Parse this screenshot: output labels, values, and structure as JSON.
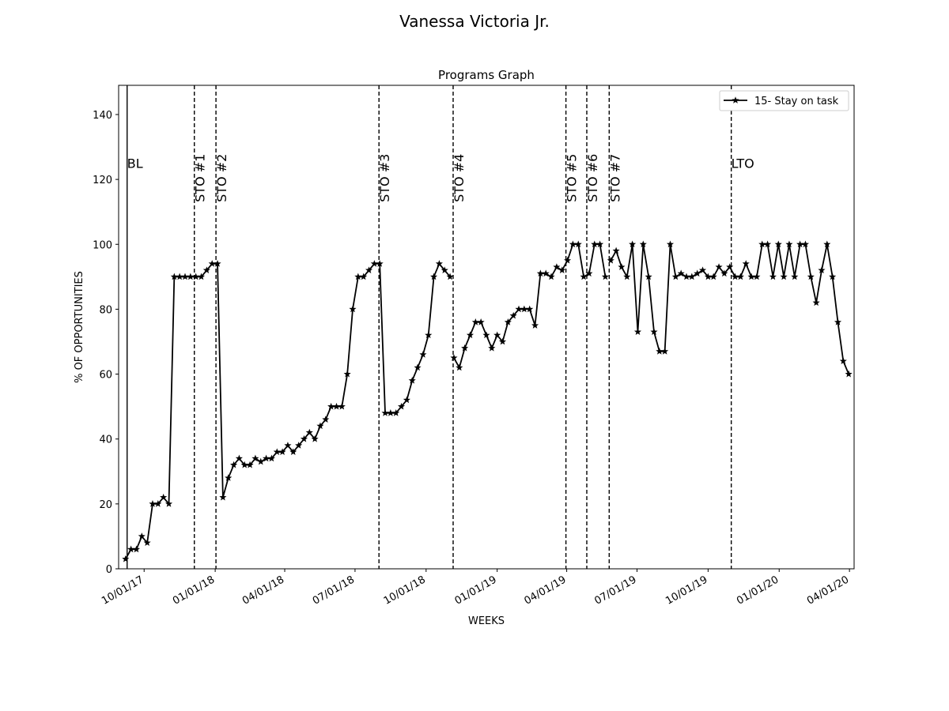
{
  "chart_data": {
    "type": "line",
    "title": "Vanessa Victoria  Jr.",
    "subtitle": "Programs Graph",
    "xlabel": "WEEKS",
    "ylabel": "% OF OPPORTUNITIES",
    "xlim": [
      "2017-08-29",
      "2020-04-07"
    ],
    "ylim": [
      0,
      149
    ],
    "x_ticks": [
      "10/01/17",
      "01/01/18",
      "04/01/18",
      "07/01/18",
      "10/01/18",
      "01/01/19",
      "04/01/19",
      "07/01/19",
      "10/01/19",
      "01/01/20",
      "04/01/20"
    ],
    "y_ticks": [
      0,
      20,
      40,
      60,
      80,
      100,
      120,
      140
    ],
    "legend": {
      "placement": "top-right"
    },
    "grid": false,
    "colors": {
      "line": "#000000",
      "axes": "#000000",
      "background": "#ffffff"
    },
    "phase_lines": [
      {
        "date": "2017-09-09",
        "label": "BL",
        "style": "solid"
      },
      {
        "date": "2017-12-05",
        "label": "STO #1",
        "style": "dashed"
      },
      {
        "date": "2018-01-02",
        "label": "STO #2",
        "style": "dashed"
      },
      {
        "date": "2018-08-01",
        "label": "STO #3",
        "style": "dashed"
      },
      {
        "date": "2018-11-05",
        "label": "STO #4",
        "style": "dashed"
      },
      {
        "date": "2019-03-31",
        "label": "STO #5",
        "style": "dashed"
      },
      {
        "date": "2019-04-27",
        "label": "STO #6",
        "style": "dashed"
      },
      {
        "date": "2019-05-26",
        "label": "STO #7",
        "style": "dashed"
      },
      {
        "date": "2019-10-31",
        "label": "LTO",
        "style": "dashed"
      }
    ],
    "series": [
      {
        "name": "15- Stay on task",
        "segments": [
          {
            "points": [
              [
                "2017-09-07",
                3
              ],
              [
                "2017-09-14",
                6
              ],
              [
                "2017-09-21",
                6
              ],
              [
                "2017-09-28",
                10
              ],
              [
                "2017-10-05",
                8
              ],
              [
                "2017-10-12",
                20
              ],
              [
                "2017-10-19",
                20
              ],
              [
                "2017-10-26",
                22
              ],
              [
                "2017-11-02",
                20
              ],
              [
                "2017-11-09",
                90
              ],
              [
                "2017-11-16",
                90
              ],
              [
                "2017-11-23",
                90
              ],
              [
                "2017-11-30",
                90
              ],
              [
                "2017-12-07",
                90
              ],
              [
                "2017-12-14",
                90
              ],
              [
                "2017-12-21",
                92
              ],
              [
                "2017-12-28",
                94
              ],
              [
                "2018-01-04",
                94
              ],
              [
                "2018-01-11",
                22
              ],
              [
                "2018-01-18",
                28
              ],
              [
                "2018-01-25",
                32
              ],
              [
                "2018-02-01",
                34
              ],
              [
                "2018-02-08",
                32
              ],
              [
                "2018-02-15",
                32
              ],
              [
                "2018-02-22",
                34
              ],
              [
                "2018-03-01",
                33
              ],
              [
                "2018-03-08",
                34
              ],
              [
                "2018-03-15",
                34
              ],
              [
                "2018-03-22",
                36
              ],
              [
                "2018-03-29",
                36
              ],
              [
                "2018-04-05",
                38
              ],
              [
                "2018-04-12",
                36
              ],
              [
                "2018-04-19",
                38
              ],
              [
                "2018-04-26",
                40
              ],
              [
                "2018-05-03",
                42
              ],
              [
                "2018-05-10",
                40
              ],
              [
                "2018-05-17",
                44
              ],
              [
                "2018-05-24",
                46
              ],
              [
                "2018-05-31",
                50
              ],
              [
                "2018-06-07",
                50
              ],
              [
                "2018-06-14",
                50
              ],
              [
                "2018-06-21",
                60
              ],
              [
                "2018-06-28",
                80
              ],
              [
                "2018-07-05",
                90
              ],
              [
                "2018-07-12",
                90
              ],
              [
                "2018-07-19",
                92
              ],
              [
                "2018-07-26",
                94
              ],
              [
                "2018-08-02",
                94
              ],
              [
                "2018-08-09",
                48
              ],
              [
                "2018-08-16",
                48
              ],
              [
                "2018-08-23",
                48
              ],
              [
                "2018-08-30",
                50
              ],
              [
                "2018-09-06",
                52
              ],
              [
                "2018-09-13",
                58
              ],
              [
                "2018-09-20",
                62
              ],
              [
                "2018-09-27",
                66
              ],
              [
                "2018-10-04",
                72
              ],
              [
                "2018-10-11",
                90
              ],
              [
                "2018-10-18",
                94
              ],
              [
                "2018-10-25",
                92
              ],
              [
                "2018-11-01",
                90
              ]
            ]
          },
          {
            "points": [
              [
                "2018-11-06",
                65
              ],
              [
                "2018-11-13",
                62
              ],
              [
                "2018-11-20",
                68
              ],
              [
                "2018-11-27",
                72
              ],
              [
                "2018-12-04",
                76
              ],
              [
                "2018-12-11",
                76
              ],
              [
                "2018-12-18",
                72
              ],
              [
                "2018-12-25",
                68
              ],
              [
                "2019-01-01",
                72
              ],
              [
                "2019-01-08",
                70
              ],
              [
                "2019-01-15",
                76
              ],
              [
                "2019-01-22",
                78
              ],
              [
                "2019-01-29",
                80
              ],
              [
                "2019-02-05",
                80
              ],
              [
                "2019-02-12",
                80
              ],
              [
                "2019-02-19",
                75
              ],
              [
                "2019-02-26",
                91
              ],
              [
                "2019-03-05",
                91
              ],
              [
                "2019-03-12",
                90
              ],
              [
                "2019-03-19",
                93
              ],
              [
                "2019-03-26",
                92
              ],
              [
                "2019-04-02",
                95
              ],
              [
                "2019-04-09",
                100
              ],
              [
                "2019-04-16",
                100
              ],
              [
                "2019-04-23",
                90
              ],
              [
                "2019-04-30",
                91
              ],
              [
                "2019-05-07",
                100
              ],
              [
                "2019-05-14",
                100
              ],
              [
                "2019-05-21",
                90
              ]
            ]
          },
          {
            "points": [
              [
                "2019-05-28",
                95
              ],
              [
                "2019-06-04",
                98
              ],
              [
                "2019-06-11",
                93
              ],
              [
                "2019-06-18",
                90
              ],
              [
                "2019-06-25",
                100
              ],
              [
                "2019-07-02",
                73
              ],
              [
                "2019-07-09",
                100
              ],
              [
                "2019-07-16",
                90
              ],
              [
                "2019-07-23",
                73
              ],
              [
                "2019-07-30",
                67
              ],
              [
                "2019-08-06",
                67
              ],
              [
                "2019-08-13",
                100
              ],
              [
                "2019-08-20",
                90
              ],
              [
                "2019-08-27",
                91
              ],
              [
                "2019-09-03",
                90
              ],
              [
                "2019-09-10",
                90
              ],
              [
                "2019-09-17",
                91
              ],
              [
                "2019-09-24",
                92
              ],
              [
                "2019-10-01",
                90
              ],
              [
                "2019-10-08",
                90
              ],
              [
                "2019-10-15",
                93
              ],
              [
                "2019-10-22",
                91
              ],
              [
                "2019-10-29",
                93
              ],
              [
                "2019-11-05",
                90
              ],
              [
                "2019-11-12",
                90
              ],
              [
                "2019-11-19",
                94
              ],
              [
                "2019-11-26",
                90
              ],
              [
                "2019-12-03",
                90
              ],
              [
                "2019-12-10",
                100
              ],
              [
                "2019-12-17",
                100
              ],
              [
                "2019-12-24",
                90
              ],
              [
                "2019-12-31",
                100
              ],
              [
                "2020-01-07",
                90
              ],
              [
                "2020-01-14",
                100
              ],
              [
                "2020-01-21",
                90
              ],
              [
                "2020-01-28",
                100
              ],
              [
                "2020-02-04",
                100
              ],
              [
                "2020-02-11",
                90
              ],
              [
                "2020-02-18",
                82
              ],
              [
                "2020-02-25",
                92
              ],
              [
                "2020-03-03",
                100
              ],
              [
                "2020-03-10",
                90
              ],
              [
                "2020-03-17",
                76
              ],
              [
                "2020-03-24",
                64
              ],
              [
                "2020-03-31",
                60
              ]
            ]
          }
        ]
      }
    ]
  }
}
